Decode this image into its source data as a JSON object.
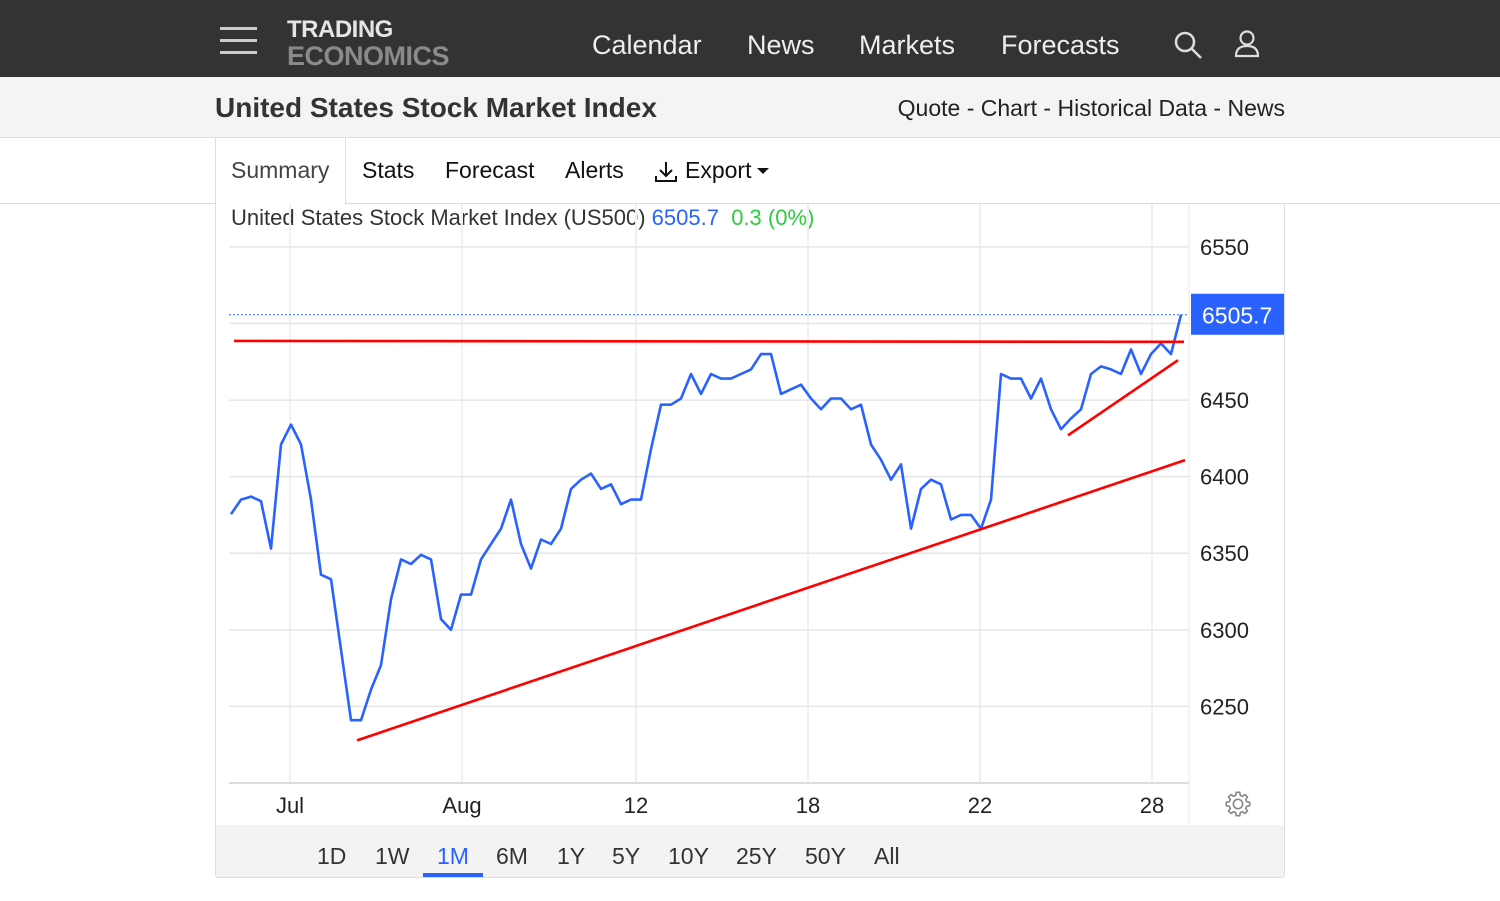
{
  "header": {
    "logo_line1": "TRADING",
    "logo_line2": "ECONOMICS",
    "nav": [
      "Calendar",
      "News",
      "Markets",
      "Forecasts"
    ]
  },
  "page": {
    "title": "United States Stock Market Index",
    "links": [
      "Quote",
      "Chart",
      "Historical Data",
      "News"
    ],
    "separator": " - "
  },
  "tabs": [
    "Summary",
    "Stats",
    "Forecast",
    "Alerts",
    "Export"
  ],
  "active_tab": "Summary",
  "chart_header": {
    "name": "United States Stock Market Index (US500)",
    "value": "6505.7",
    "change": "0.3 (0%)"
  },
  "colors": {
    "line": "#2962ff",
    "trend": "#ff0000",
    "change": "#2ecc40",
    "topbar": "#333333"
  },
  "range_buttons": [
    "1D",
    "1W",
    "1M",
    "6M",
    "1Y",
    "5Y",
    "10Y",
    "25Y",
    "50Y",
    "All"
  ],
  "active_range": "1M",
  "chart_data": {
    "type": "line",
    "title": "",
    "ylim": [
      6200,
      6578
    ],
    "grid": true,
    "y_axis_position": "right",
    "y_ticks": [
      6250,
      6300,
      6350,
      6400,
      6450,
      6550
    ],
    "y_tick_labels": [
      "6250",
      "6300",
      "6350",
      "6400",
      "6450",
      "6550"
    ],
    "last_value_label": "6505.7",
    "last_value": 6505.7,
    "x_ticks": [
      {
        "index": 5.9,
        "label": "Jul"
      },
      {
        "index": 23.1,
        "label": "Aug"
      },
      {
        "index": 40.5,
        "label": "12"
      },
      {
        "index": 57.7,
        "label": "18"
      },
      {
        "index": 74.9,
        "label": "22"
      },
      {
        "index": 92.1,
        "label": "28"
      }
    ],
    "values": [
      6375.5,
      6385,
      6387,
      6384,
      6353,
      6421,
      6434,
      6421,
      6385,
      6336,
      6333,
      6287,
      6241,
      6241,
      6261,
      6277,
      6320,
      6346,
      6343,
      6349,
      6346,
      6307,
      6300,
      6323,
      6323,
      6346,
      6356,
      6366,
      6385,
      6356,
      6340,
      6359,
      6356,
      6366,
      6392,
      6398,
      6402,
      6392,
      6395,
      6382,
      6385,
      6385,
      6418,
      6447,
      6447,
      6451,
      6467,
      6454,
      6467,
      6464,
      6464,
      6467,
      6470,
      6480,
      6480,
      6454,
      6457,
      6460,
      6451,
      6444,
      6451,
      6451,
      6444,
      6447,
      6421,
      6411,
      6398,
      6408,
      6366,
      6392,
      6398,
      6395,
      6372,
      6375,
      6375,
      6366,
      6385,
      6467,
      6464,
      6464,
      6451,
      6464,
      6444,
      6431,
      6438,
      6444,
      6467,
      6472,
      6470,
      6467,
      6483,
      6467,
      6480,
      6487,
      6480,
      6505.7
    ],
    "trendlines": [
      {
        "from": [
          0.3,
          6488.6
        ],
        "to": [
          95.3,
          6488
        ]
      },
      {
        "from": [
          12.6,
          6227.8
        ],
        "to": [
          95.4,
          6410.8
        ]
      },
      {
        "from": [
          83.7,
          6427
        ],
        "to": [
          94.7,
          6476
        ]
      }
    ]
  }
}
